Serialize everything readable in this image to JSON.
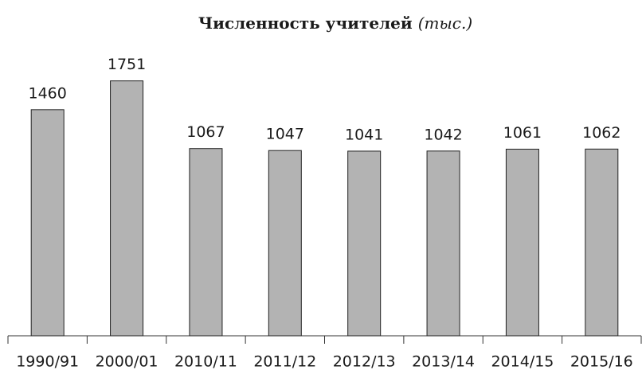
{
  "chart_data": {
    "type": "bar",
    "title": "Численность учителей",
    "unit": "(тыс.)",
    "categories": [
      "1990/91",
      "2000/01",
      "2010/11",
      "2011/12",
      "2012/13",
      "2013/14",
      "2014/15",
      "2015/16"
    ],
    "values": [
      1460,
      1751,
      1067,
      1047,
      1041,
      1042,
      1061,
      1062
    ],
    "color": "#b3b3b3",
    "ylim": [
      -825,
      1925
    ],
    "grid": false
  }
}
